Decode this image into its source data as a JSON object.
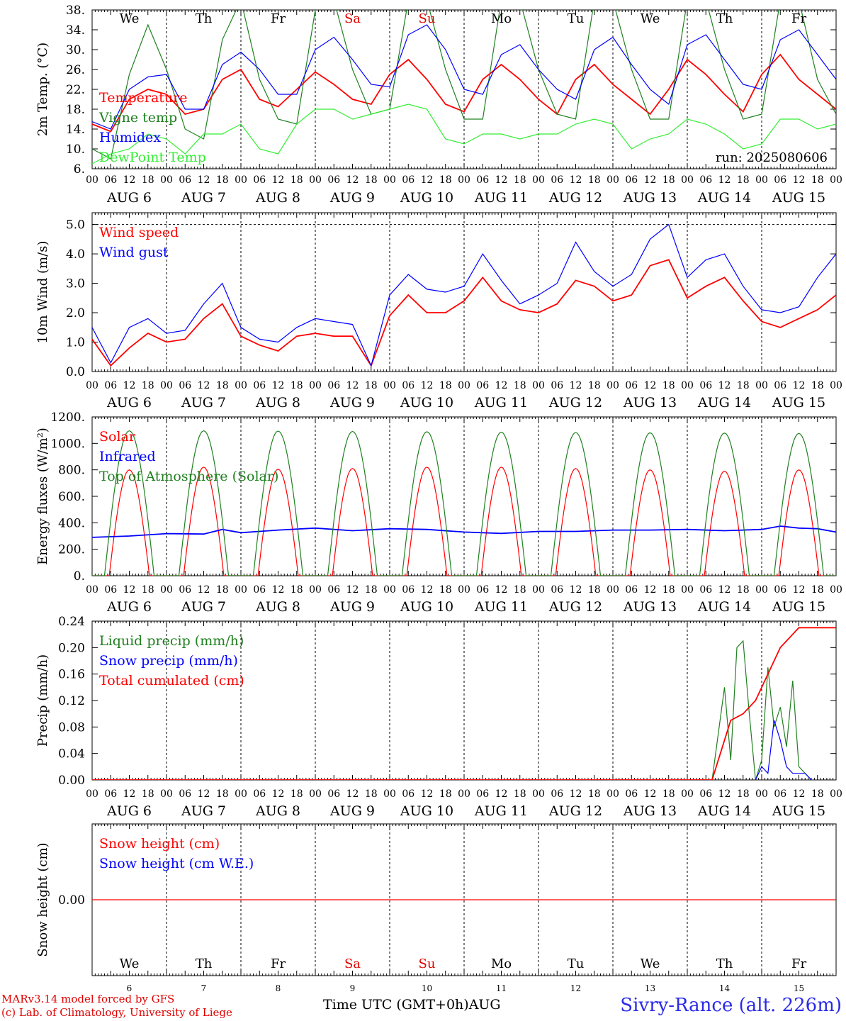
{
  "run_label": "run: 2025080606",
  "x_axis_title": "Time UTC (GMT+0h)AUG",
  "station": "Sivry-Rance (alt. 226m)",
  "credits": [
    "MARv3.14 model forced by GFS",
    "(c) Lab. of Climatology, University of Liege"
  ],
  "hour_ticks": [
    "00",
    "06",
    "12",
    "18"
  ],
  "end_tick": "00",
  "date_labels": [
    "AUG 6",
    "AUG 7",
    "AUG 8",
    "AUG 9",
    "AUG 10",
    "AUG 11",
    "AUG 12",
    "AUG 13",
    "AUG 14",
    "AUG 15"
  ],
  "weekdays": [
    "We",
    "Th",
    "Fr",
    "Sa",
    "Su",
    "Mo",
    "Tu",
    "We",
    "Th",
    "Fr"
  ],
  "weekend_color": "#e00000",
  "day_numbers": [
    "6",
    "7",
    "8",
    "9",
    "10",
    "11",
    "12",
    "13",
    "14",
    "15"
  ],
  "chart_data": [
    {
      "type": "line",
      "ylabel": "2m Temp. (°C)",
      "ylim": [
        6,
        38
      ],
      "yticks": [
        "6.",
        "10.",
        "14.",
        "18.",
        "22.",
        "26.",
        "30.",
        "34.",
        "38."
      ],
      "x": [
        0,
        6,
        12,
        18,
        24,
        30,
        36,
        42,
        48,
        54,
        60,
        66,
        72,
        78,
        84,
        90,
        96,
        102,
        108,
        114,
        120,
        126,
        132,
        138,
        144,
        150,
        156,
        162,
        168,
        174,
        180,
        186,
        192,
        198,
        204,
        210,
        216,
        222,
        228,
        234,
        240
      ],
      "series": [
        {
          "name": "Temperature",
          "color": "#ff0000",
          "values": [
            15,
            13.5,
            20,
            22,
            21,
            17,
            18,
            24,
            26,
            20,
            18.5,
            22,
            25.5,
            23,
            20,
            19,
            25,
            28,
            24,
            19,
            17.5,
            24,
            27,
            24,
            20,
            17,
            24,
            27,
            23,
            20,
            17,
            22,
            28,
            25,
            21,
            17.5,
            25,
            29,
            24,
            21,
            18
          ]
        },
        {
          "name": "Vigne temp",
          "color": "#208020",
          "values": [
            10,
            8,
            25,
            35,
            26,
            14,
            12,
            32,
            40,
            24,
            16,
            15,
            38,
            40,
            26,
            17,
            18,
            40,
            40,
            26,
            16,
            16,
            40,
            40,
            26,
            17,
            16,
            40,
            40,
            26,
            16,
            16,
            40,
            40,
            26,
            16,
            17,
            40,
            40,
            24,
            17
          ]
        },
        {
          "name": "Humidex",
          "color": "#0000ff",
          "values": [
            15.5,
            14,
            22,
            24.5,
            25,
            18,
            18,
            27,
            29.5,
            26,
            21,
            21,
            30,
            32.5,
            28,
            23,
            22.5,
            33,
            35,
            30,
            22,
            21,
            29,
            31,
            26,
            22,
            20,
            30,
            32.5,
            27,
            22,
            19,
            31,
            33,
            28,
            23,
            22,
            32,
            34,
            29,
            24
          ]
        },
        {
          "name": "DewPoint Temp",
          "color": "#33ee33",
          "values": [
            7,
            9,
            10,
            13,
            12,
            9,
            13,
            13,
            15,
            10,
            9,
            15,
            18,
            18,
            16,
            17,
            18,
            19,
            18,
            12,
            11,
            13,
            13,
            12,
            13,
            13,
            15,
            16,
            15,
            10,
            12,
            13,
            16,
            15,
            13,
            10,
            11,
            16,
            16,
            14,
            15
          ]
        }
      ]
    },
    {
      "type": "line",
      "ylabel": "10m Wind (m/s)",
      "ylim": [
        0,
        5.4
      ],
      "yticks": [
        "0.0",
        "1.0",
        "2.0",
        "3.0",
        "4.0",
        "5.0"
      ],
      "reference_line": 5.0,
      "x": [
        0,
        6,
        12,
        18,
        24,
        30,
        36,
        42,
        48,
        54,
        60,
        66,
        72,
        78,
        84,
        90,
        96,
        102,
        108,
        114,
        120,
        126,
        132,
        138,
        144,
        150,
        156,
        162,
        168,
        174,
        180,
        186,
        192,
        198,
        204,
        210,
        216,
        222,
        228,
        234,
        240
      ],
      "series": [
        {
          "name": "Wind speed",
          "color": "#ff0000",
          "values": [
            1.1,
            0.2,
            0.8,
            1.3,
            1.0,
            1.1,
            1.8,
            2.3,
            1.2,
            0.9,
            0.7,
            1.2,
            1.3,
            1.2,
            1.2,
            0.2,
            1.9,
            2.6,
            2.0,
            2.0,
            2.4,
            3.2,
            2.4,
            2.1,
            2.0,
            2.3,
            3.1,
            2.9,
            2.4,
            2.6,
            3.6,
            3.8,
            2.5,
            2.9,
            3.2,
            2.4,
            1.7,
            1.5,
            1.8,
            2.1,
            2.6
          ]
        },
        {
          "name": "Wind gust",
          "color": "#0000ff",
          "values": [
            1.5,
            0.3,
            1.5,
            1.8,
            1.3,
            1.4,
            2.3,
            3.0,
            1.5,
            1.1,
            1.0,
            1.5,
            1.8,
            1.7,
            1.6,
            0.2,
            2.6,
            3.3,
            2.8,
            2.7,
            2.9,
            4.0,
            3.1,
            2.3,
            2.6,
            3.0,
            4.4,
            3.4,
            2.9,
            3.3,
            4.5,
            5.0,
            3.2,
            3.8,
            4.0,
            2.9,
            2.1,
            2.0,
            2.2,
            3.2,
            4.0
          ]
        }
      ]
    },
    {
      "type": "line",
      "ylabel": "Energy fluxes (W/m²)",
      "ylim": [
        0,
        1200
      ],
      "yticks": [
        "0.",
        "200.",
        "400.",
        "600.",
        "800.",
        "1000.",
        "1200."
      ],
      "series": [
        {
          "name": "Solar",
          "color": "#ff0000",
          "daily_peak": [
            800,
            820,
            805,
            810,
            820,
            820,
            810,
            800,
            790,
            800
          ]
        },
        {
          "name": "Infrared",
          "color": "#0000ff",
          "x": [
            0,
            12,
            24,
            36,
            42,
            48,
            60,
            72,
            84,
            96,
            108,
            120,
            132,
            144,
            156,
            168,
            180,
            192,
            204,
            216,
            222,
            228,
            234,
            240
          ],
          "values": [
            290,
            300,
            318,
            315,
            350,
            325,
            345,
            360,
            340,
            355,
            350,
            330,
            320,
            335,
            335,
            345,
            345,
            350,
            340,
            350,
            375,
            360,
            355,
            330
          ]
        },
        {
          "name": "Top of Atmosphere (Solar)",
          "color": "#208020",
          "daily_peak": [
            1095,
            1095,
            1093,
            1090,
            1088,
            1085,
            1082,
            1080,
            1078,
            1075
          ]
        }
      ]
    },
    {
      "type": "line",
      "ylabel": "Precip (mm/h)",
      "ylim": [
        0,
        0.24
      ],
      "yticks": [
        "0.00",
        "0.04",
        "0.08",
        "0.12",
        "0.16",
        "0.20",
        "0.24"
      ],
      "series": [
        {
          "name": "Liquid precip (mm/h)",
          "color": "#208020",
          "x": [
            200,
            204,
            206,
            208,
            210,
            212,
            214,
            216,
            218,
            220,
            222,
            224,
            226,
            228,
            230,
            232
          ],
          "values": [
            0,
            0.14,
            0.03,
            0.2,
            0.21,
            0.1,
            0,
            0.03,
            0.17,
            0.08,
            0.11,
            0.05,
            0.15,
            0.02,
            0.01,
            0
          ]
        },
        {
          "name": "Snow precip (mm/h)",
          "color": "#0000ff",
          "x": [
            214,
            216,
            218,
            220,
            222,
            224,
            226,
            228,
            230,
            232
          ],
          "values": [
            0,
            0.02,
            0.01,
            0.09,
            0.06,
            0.02,
            0.01,
            0.01,
            0.01,
            0
          ]
        },
        {
          "name": "Total cumulated (cm)",
          "color": "#ff0000",
          "x": [
            0,
            200,
            206,
            210,
            214,
            218,
            222,
            228,
            232,
            240
          ],
          "values": [
            0,
            0,
            0.09,
            0.1,
            0.12,
            0.16,
            0.2,
            0.23,
            0.23,
            0.23
          ]
        }
      ]
    },
    {
      "type": "line",
      "ylabel": "Snow height (cm)",
      "ylim": [
        -0.5,
        0.5
      ],
      "yticks": [
        "0.00"
      ],
      "series": [
        {
          "name": "Snow height (cm)",
          "color": "#ff0000",
          "x": [
            0,
            240
          ],
          "values": [
            0,
            0
          ]
        },
        {
          "name": "Snow height (cm W.E.)",
          "color": "#0000ff",
          "x": [],
          "values": []
        }
      ]
    }
  ]
}
